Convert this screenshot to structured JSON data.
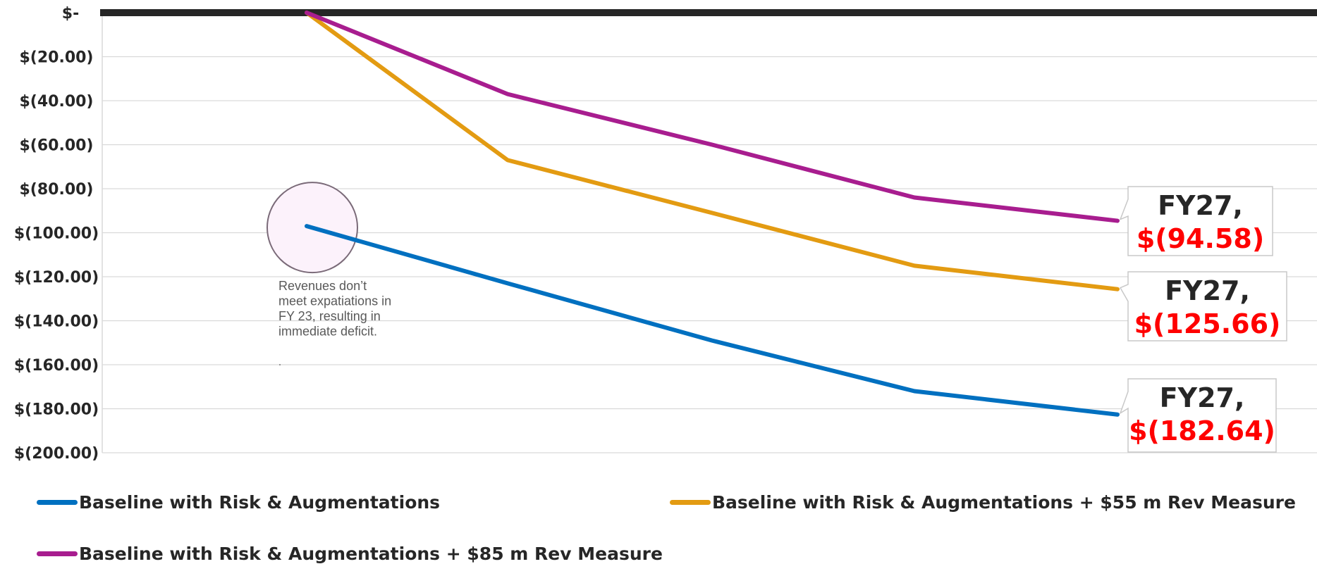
{
  "chart_data": {
    "type": "line",
    "title": "",
    "xlabel": "",
    "ylabel": "",
    "ylim": [
      -200,
      0
    ],
    "y_ticks": [
      {
        "value": 0,
        "label": "$-"
      },
      {
        "value": -20,
        "label": "$(20.00)"
      },
      {
        "value": -40,
        "label": "$(40.00)"
      },
      {
        "value": -60,
        "label": "$(60.00)"
      },
      {
        "value": -80,
        "label": "$(80.00)"
      },
      {
        "value": -100,
        "label": "$(100.00)"
      },
      {
        "value": -120,
        "label": "$(120.00)"
      },
      {
        "value": -140,
        "label": "$(140.00)"
      },
      {
        "value": -160,
        "label": "$(160.00)"
      },
      {
        "value": -180,
        "label": "$(180.00)"
      },
      {
        "value": -200,
        "label": "$(200.00)"
      }
    ],
    "grid": true,
    "legend_position": "bottom",
    "series": [
      {
        "name": "Baseline with Risk & Augmentations",
        "color": "#0070c0",
        "points": [
          {
            "i": 1,
            "y": -97
          },
          {
            "i": 2,
            "y": -123
          },
          {
            "i": 3,
            "y": -149
          },
          {
            "i": 4,
            "y": -172
          },
          {
            "i": 5,
            "y": -182.64
          }
        ]
      },
      {
        "name": "Baseline with Risk & Augmentations + $55 m Rev Measure",
        "color": "#e39b12",
        "points": [
          {
            "i": 1,
            "y": 0
          },
          {
            "i": 2,
            "y": -67
          },
          {
            "i": 3,
            "y": -91
          },
          {
            "i": 4,
            "y": -115
          },
          {
            "i": 5,
            "y": -125.66
          }
        ]
      },
      {
        "name": "Baseline with Risk & Augmentations + $85 m Rev Measure",
        "color": "#a81d8f",
        "points": [
          {
            "i": 1,
            "y": 0
          },
          {
            "i": 2,
            "y": -37
          },
          {
            "i": 3,
            "y": -60
          },
          {
            "i": 4,
            "y": -84
          },
          {
            "i": 5,
            "y": -94.58
          }
        ]
      }
    ],
    "data_labels": [
      {
        "series": 2,
        "line1": "FY27,",
        "line2": "$(94.58)"
      },
      {
        "series": 1,
        "line1": "FY27,",
        "line2": "$(125.66)"
      },
      {
        "series": 0,
        "line1": "FY27,",
        "line2": "$(182.64)"
      }
    ],
    "annotation": {
      "lines": [
        "Revenues don’t",
        "meet expatiations in",
        "FY 23, resulting in",
        "immediate deficit."
      ],
      "circle_on": {
        "series": 0,
        "i": 1
      }
    }
  }
}
